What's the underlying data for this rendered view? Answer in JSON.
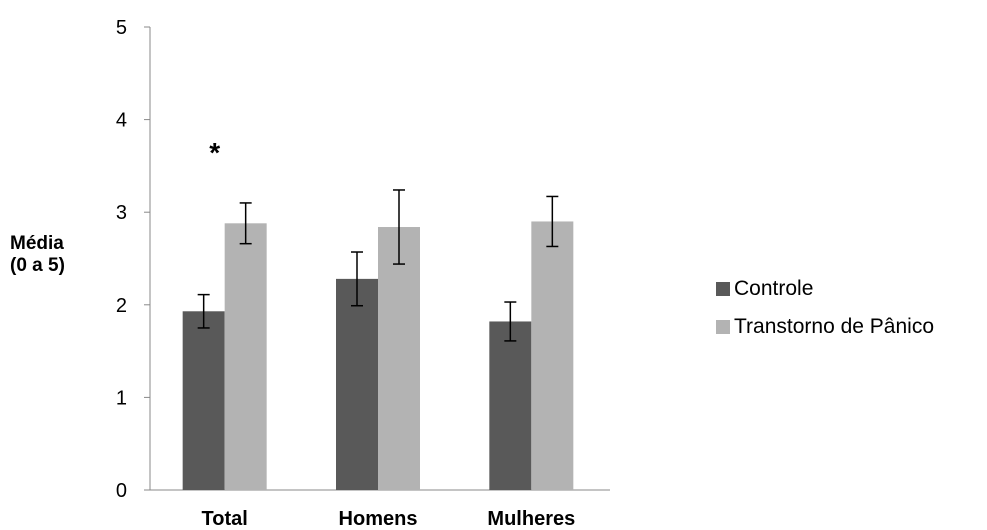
{
  "chart_data": {
    "type": "bar",
    "categories": [
      "Total",
      "Homens",
      "Mulheres"
    ],
    "series": [
      {
        "name": "Controle",
        "color": "#595959",
        "values": [
          1.93,
          2.28,
          1.82
        ],
        "errors": [
          0.18,
          0.29,
          0.21
        ]
      },
      {
        "name": "Transtorno de Pânico",
        "color": "#b3b3b3",
        "values": [
          2.88,
          2.84,
          2.9
        ],
        "errors": [
          0.22,
          0.4,
          0.27
        ]
      }
    ],
    "ylabel": "Média\n(0 a 5)",
    "ylabel_lines": [
      "Média",
      "(0 a 5)"
    ],
    "ylim": [
      0,
      5
    ],
    "yticks": [
      0,
      1,
      2,
      3,
      4,
      5
    ],
    "grid": false,
    "legend_position": "right",
    "annotations": [
      {
        "text": "*",
        "category": "Total"
      }
    ]
  }
}
